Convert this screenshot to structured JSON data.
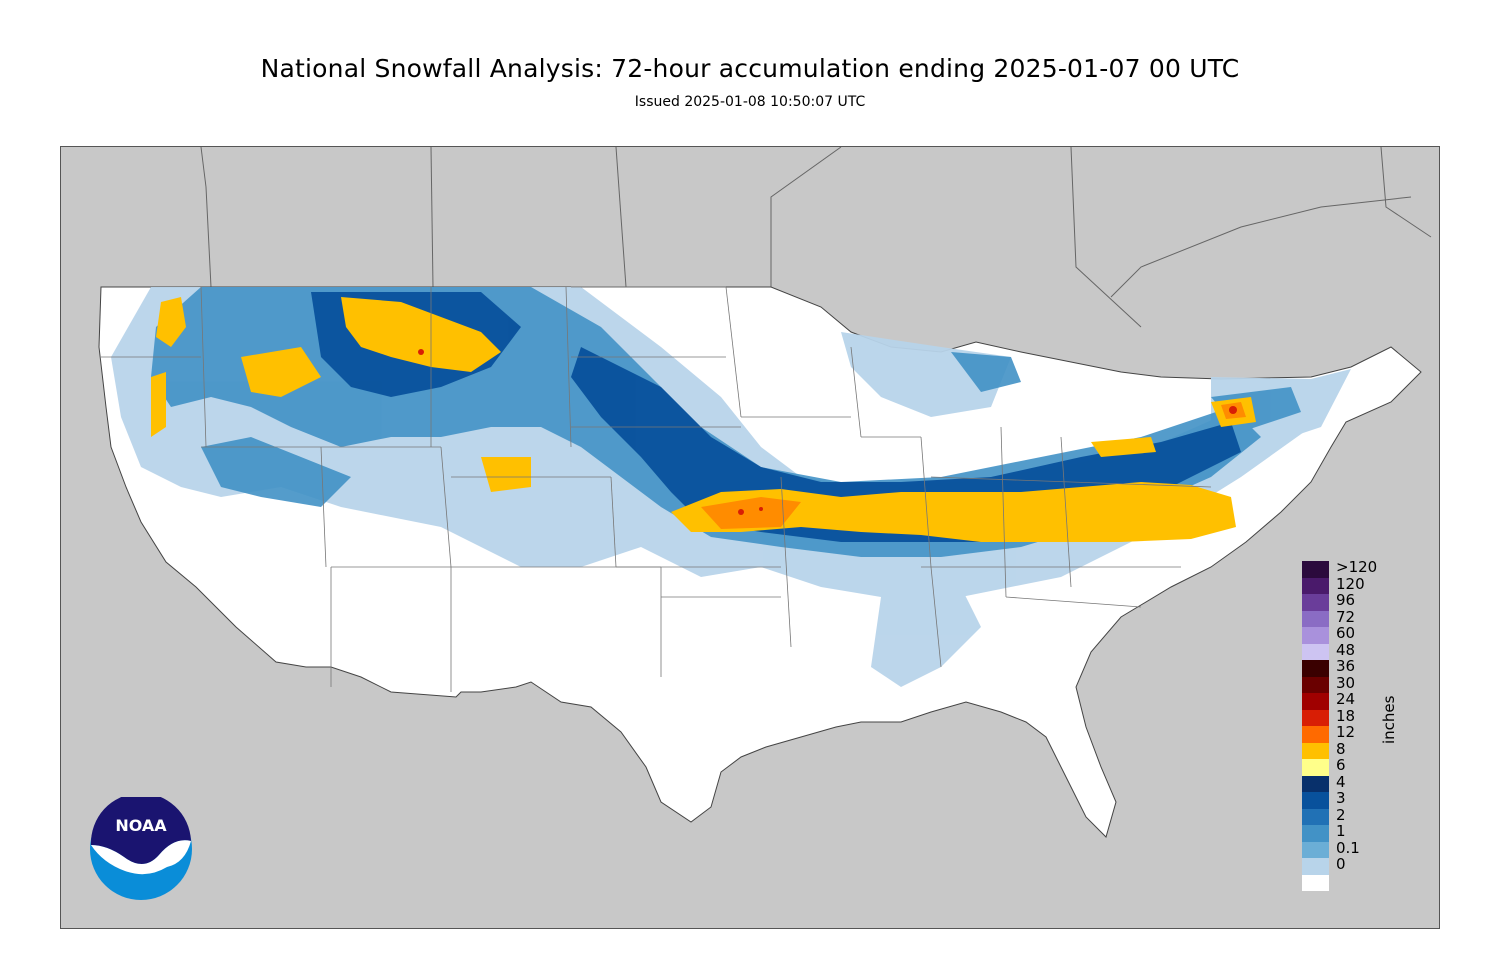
{
  "title": "National Snowfall Analysis: 72-hour accumulation ending 2025-01-07 00 UTC",
  "subtitle": "Issued 2025-01-08 10:50:07 UTC",
  "legend": {
    "units": "inches",
    "levels": [
      {
        "label": ">120",
        "color": "#2b0a3d"
      },
      {
        "label": "120",
        "color": "#4a1a6b"
      },
      {
        "label": "96",
        "color": "#6a3d9a"
      },
      {
        "label": "72",
        "color": "#8a6cc4"
      },
      {
        "label": "60",
        "color": "#a991dc"
      },
      {
        "label": "48",
        "color": "#cdc4f2"
      },
      {
        "label": "36",
        "color": "#3a0000"
      },
      {
        "label": "30",
        "color": "#6a0000"
      },
      {
        "label": "24",
        "color": "#a00000"
      },
      {
        "label": "18",
        "color": "#d81e05"
      },
      {
        "label": "12",
        "color": "#ff6a00"
      },
      {
        "label": "8",
        "color": "#ffc000"
      },
      {
        "label": "6",
        "color": "#ffff8a"
      },
      {
        "label": "4",
        "color": "#08306b"
      },
      {
        "label": "3",
        "color": "#08519c"
      },
      {
        "label": "2",
        "color": "#2171b5"
      },
      {
        "label": "1",
        "color": "#4292c6"
      },
      {
        "label": "0.1",
        "color": "#6baed6"
      },
      {
        "label": "0",
        "color": "#b8d4ea"
      }
    ],
    "bottom_color": "#ffffff"
  },
  "logo": {
    "text": "NOAA"
  },
  "colors": {
    "ocean": "#c8c8c8",
    "land_outside": "#c8c8c8",
    "conus": "#ffffff",
    "boundary": "#555555"
  }
}
